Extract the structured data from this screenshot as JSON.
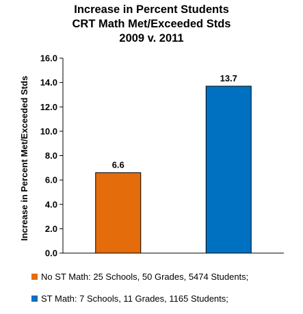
{
  "chart_data": {
    "type": "bar",
    "title_lines": [
      "Increase in Percent Students",
      "CRT Math Met/Exceeded Stds",
      "2009 v. 2011"
    ],
    "ylabel": "Increase in Percent Met/Exceeded Stds",
    "xlabel": "",
    "ylim": [
      0,
      16
    ],
    "yticks": [
      "0.0",
      "2.0",
      "4.0",
      "6.0",
      "8.0",
      "10.0",
      "12.0",
      "14.0",
      "16.0"
    ],
    "grid": false,
    "legend_position": "bottom",
    "series": [
      {
        "name": "No ST Math: 25 Schools, 50 Grades, 5474 Students;",
        "values": [
          6.6
        ],
        "label": "6.6",
        "color": "#e46c0a"
      },
      {
        "name": "ST Math: 7 Schools, 11 Grades, 1165 Students;",
        "values": [
          13.7
        ],
        "label": "13.7",
        "color": "#0070c0"
      }
    ]
  }
}
